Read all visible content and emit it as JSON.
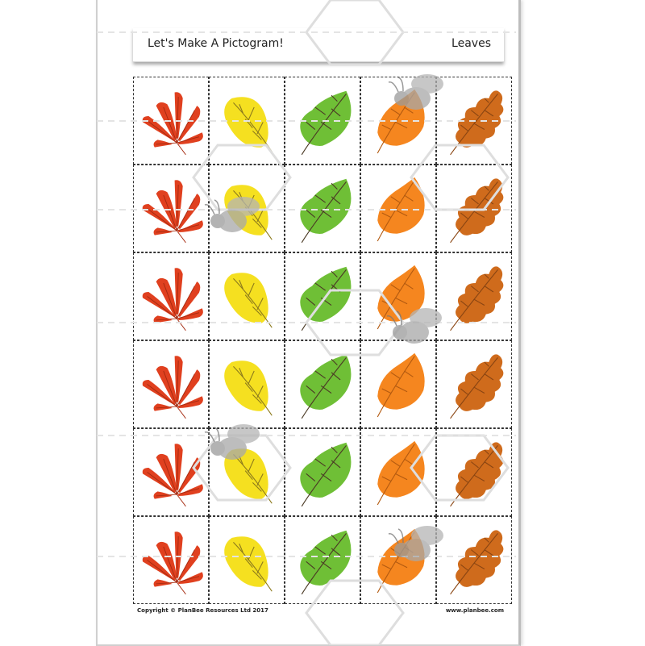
{
  "header": {
    "title": "Let's Make A Pictogram!",
    "topic": "Leaves"
  },
  "footer": {
    "copyright": "Copyright © PlanBee Resources Ltd 2017",
    "url": "www.planbee.com"
  },
  "grid": {
    "rows": 6,
    "columns": [
      {
        "leaf": "horse-chestnut-leaf-icon",
        "color": "#e0401f",
        "vein": "#a52a10"
      },
      {
        "leaf": "yellow-leaf-icon",
        "color": "#f5e020",
        "vein": "#8c7a1c"
      },
      {
        "leaf": "green-leaf-icon",
        "color": "#6fbf36",
        "vein": "#4b3a25"
      },
      {
        "leaf": "orange-leaf-icon",
        "color": "#f5861f",
        "vein": "#b35a10"
      },
      {
        "leaf": "oak-leaf-icon",
        "color": "#cf6b1c",
        "vein": "#8a4512"
      }
    ]
  },
  "watermark": {
    "icon": "bee-watermark-icon",
    "color": "#9a9a9a"
  }
}
